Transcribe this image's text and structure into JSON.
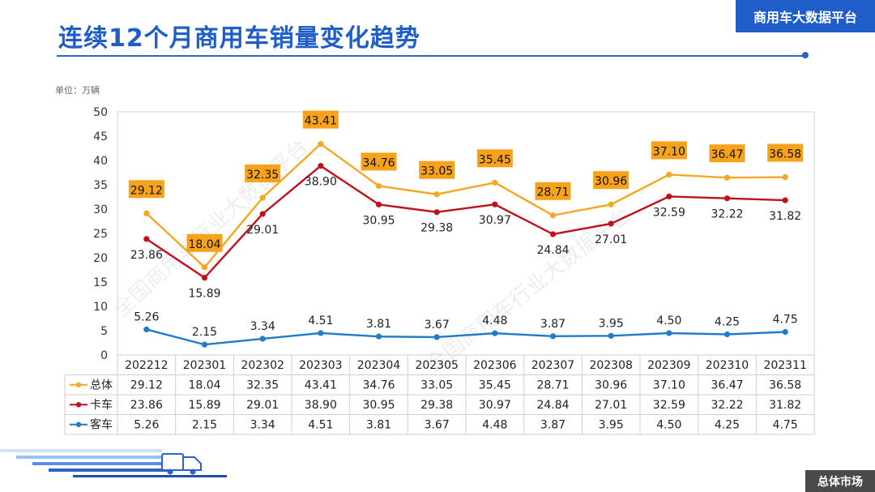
{
  "header": {
    "title": "连续12个月商用车销量变化趋势",
    "brand": "商用车大数据平台",
    "footer_tag": "总体市场"
  },
  "watermark": "全国商用车行业大数据平台",
  "colors": {
    "accent": "#1f5ec9",
    "total": "#f5a623",
    "truck": "#c0101a",
    "bus": "#1f7cc9",
    "label_box": "#f7a21b"
  },
  "chart_data": {
    "type": "line",
    "title": "连续12个月商用车销量变化趋势",
    "unit_label": "单位：万辆",
    "categories": [
      "202212",
      "202301",
      "202302",
      "202303",
      "202304",
      "202305",
      "202306",
      "202307",
      "202308",
      "202309",
      "202310",
      "202311"
    ],
    "series": [
      {
        "name": "总体",
        "key": "total",
        "values": [
          29.12,
          18.04,
          32.35,
          43.41,
          34.76,
          33.05,
          35.45,
          28.71,
          30.96,
          37.1,
          36.47,
          36.58
        ],
        "labels": [
          "29.12",
          "18.04",
          "32.35",
          "43.41",
          "34.76",
          "33.05",
          "35.45",
          "28.71",
          "30.96",
          "37.10",
          "36.47",
          "36.58"
        ]
      },
      {
        "name": "卡车",
        "key": "truck",
        "values": [
          23.86,
          15.89,
          29.01,
          38.9,
          30.95,
          29.38,
          30.97,
          24.84,
          27.01,
          32.59,
          32.22,
          31.82
        ],
        "labels": [
          "23.86",
          "15.89",
          "29.01",
          "38.90",
          "30.95",
          "29.38",
          "30.97",
          "24.84",
          "27.01",
          "32.59",
          "32.22",
          "31.82"
        ]
      },
      {
        "name": "客车",
        "key": "bus",
        "values": [
          5.26,
          2.15,
          3.34,
          4.51,
          3.81,
          3.67,
          4.48,
          3.87,
          3.95,
          4.5,
          4.25,
          4.75
        ],
        "labels": [
          "5.26",
          "2.15",
          "3.34",
          "4.51",
          "3.81",
          "3.67",
          "4.48",
          "3.87",
          "3.95",
          "4.50",
          "4.25",
          "4.75"
        ]
      }
    ],
    "ylim": [
      0,
      50
    ],
    "yticks": [
      "0",
      "5",
      "10",
      "15",
      "20",
      "25",
      "30",
      "35",
      "40",
      "45",
      "50"
    ],
    "grid": true,
    "data_table": true
  }
}
